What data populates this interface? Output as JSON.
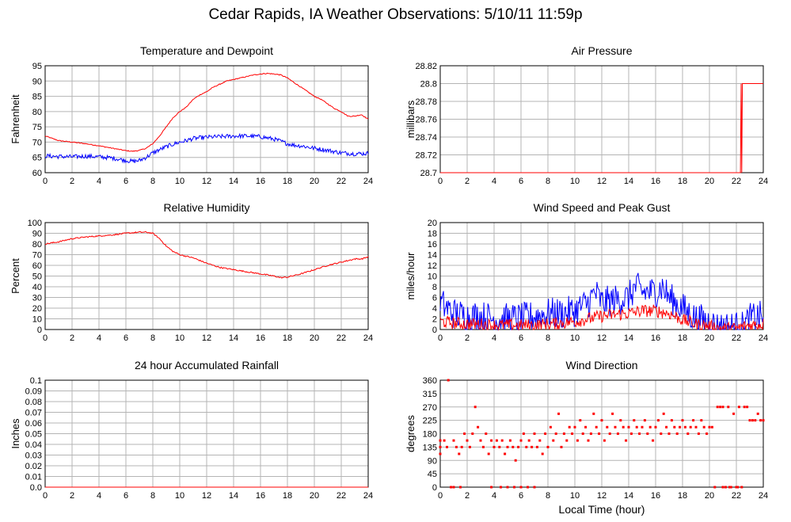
{
  "title": "Cedar Rapids, IA Weather Observations: 5/10/11 11:59p",
  "xlabel": "Local Time (hour)",
  "colors": {
    "red": "#ff0000",
    "blue": "#0000ff",
    "grid": "#b4b4b4"
  },
  "chart_data": [
    {
      "id": "temp",
      "type": "line",
      "title": "Temperature and Dewpoint",
      "ylabel": "Fahrenheit",
      "xlim": [
        0,
        24
      ],
      "ylim": [
        60,
        95
      ],
      "xticks": [
        0,
        2,
        4,
        6,
        8,
        10,
        12,
        14,
        16,
        18,
        20,
        22,
        24
      ],
      "yticks": [
        60,
        65,
        70,
        75,
        80,
        85,
        90,
        95
      ],
      "series": [
        {
          "color": "red",
          "noise": 0.15,
          "x": [
            0,
            1,
            2,
            3,
            4,
            5,
            6,
            6.5,
            7,
            7.5,
            8,
            8.5,
            9,
            9.5,
            10,
            10.5,
            11,
            11.5,
            12,
            12.5,
            13,
            13.5,
            14,
            14.5,
            15,
            15.5,
            16,
            16.5,
            17,
            17.5,
            18,
            18.5,
            19,
            19.5,
            20,
            20.5,
            21,
            21.5,
            22,
            22.5,
            23,
            23.5,
            24
          ],
          "y": [
            72,
            70.5,
            70,
            69.5,
            68.8,
            68,
            67.2,
            67,
            67.3,
            68,
            69.5,
            72,
            75,
            78,
            80,
            81.5,
            84,
            85.5,
            86.5,
            88,
            89,
            90,
            90.5,
            91,
            91.5,
            92,
            92.3,
            92.5,
            92.3,
            92,
            91,
            89.5,
            88,
            86.5,
            85,
            84,
            82.5,
            81,
            80,
            78.5,
            78.5,
            79,
            77.5
          ]
        },
        {
          "color": "blue",
          "noise": 0.7,
          "x": [
            0,
            1,
            2,
            3,
            4,
            5,
            6,
            6.5,
            7,
            7.5,
            8,
            8.5,
            9,
            9.5,
            10,
            10.5,
            11,
            12,
            13,
            14,
            15,
            16,
            17,
            17.5,
            18,
            18.5,
            19,
            20,
            21,
            22,
            23,
            24
          ],
          "y": [
            65.5,
            65.3,
            65.2,
            65.4,
            65.2,
            64.8,
            64,
            63.7,
            64,
            65,
            66.5,
            67.5,
            68.5,
            69.3,
            70,
            70.5,
            71.2,
            71.6,
            71.8,
            72,
            72,
            71.8,
            71,
            70.3,
            69.5,
            69,
            68.8,
            68,
            67.3,
            66.5,
            66.2,
            66.3
          ]
        }
      ]
    },
    {
      "id": "pressure",
      "type": "line",
      "title": "Air Pressure",
      "ylabel": "millibars",
      "xlim": [
        0,
        24
      ],
      "ylim": [
        28.7,
        28.82
      ],
      "xticks": [
        0,
        2,
        4,
        6,
        8,
        10,
        12,
        14,
        16,
        18,
        20,
        22,
        24
      ],
      "yticks": [
        28.7,
        28.72,
        28.74,
        28.76,
        28.78,
        28.8,
        28.82
      ],
      "yticklabels": [
        "28.7",
        "28.72",
        "28.74",
        "28.76",
        "28.78",
        "28.8",
        "28.82"
      ],
      "series": [
        {
          "color": "red",
          "noise": 0,
          "x": [
            0,
            22.3,
            22.35,
            22.4,
            22.45,
            22.5,
            24
          ],
          "y": [
            28.7,
            28.7,
            28.8,
            28.7,
            28.8,
            28.8,
            28.8
          ]
        }
      ]
    },
    {
      "id": "humidity",
      "type": "line",
      "title": "Relative Humidity",
      "ylabel": "Percent",
      "xlim": [
        0,
        24
      ],
      "ylim": [
        0,
        100
      ],
      "xticks": [
        0,
        2,
        4,
        6,
        8,
        10,
        12,
        14,
        16,
        18,
        20,
        22,
        24
      ],
      "yticks": [
        0,
        10,
        20,
        30,
        40,
        50,
        60,
        70,
        80,
        90,
        100
      ],
      "series": [
        {
          "color": "red",
          "noise": 0.6,
          "x": [
            0,
            1,
            2,
            3,
            4,
            5,
            6,
            7,
            7.5,
            8,
            8.5,
            9,
            9.5,
            10,
            11,
            12,
            13,
            14,
            15,
            16,
            17,
            17.5,
            18,
            19,
            20,
            21,
            22,
            23,
            23.5,
            24
          ],
          "y": [
            80,
            82,
            85,
            86.5,
            87.5,
            88.5,
            90,
            91,
            91,
            90,
            85,
            78,
            73,
            70,
            67,
            62,
            58,
            56,
            54,
            52,
            50,
            48.5,
            49,
            52,
            56,
            60,
            63,
            66,
            66,
            68
          ]
        }
      ]
    },
    {
      "id": "wind",
      "type": "line",
      "title": "Wind Speed and Peak Gust",
      "ylabel": "miles/hour",
      "xlim": [
        0,
        24
      ],
      "ylim": [
        0,
        20
      ],
      "xticks": [
        0,
        2,
        4,
        6,
        8,
        10,
        12,
        14,
        16,
        18,
        20,
        22,
        24
      ],
      "yticks": [
        0,
        2,
        4,
        6,
        8,
        10,
        12,
        14,
        16,
        18,
        20
      ],
      "series": [
        {
          "color": "blue",
          "noise": 3,
          "x": [
            0,
            0.5,
            1,
            2,
            3,
            4,
            5,
            6,
            7,
            8,
            9,
            10,
            11,
            11.5,
            12,
            13,
            14,
            14.5,
            15,
            16,
            16.5,
            17,
            18,
            19,
            20,
            20.5,
            21,
            22,
            22.5,
            23,
            24
          ],
          "y": [
            5,
            4,
            3,
            2.5,
            2.5,
            2,
            2,
            2,
            2.5,
            3,
            3,
            3.5,
            5,
            7,
            5,
            5.5,
            6,
            8,
            7,
            7,
            8,
            6,
            4,
            2,
            1.5,
            0.5,
            0.5,
            0.5,
            0.5,
            2,
            2.5
          ]
        },
        {
          "color": "red",
          "noise": 1.2,
          "x": [
            0,
            1,
            2,
            3,
            4,
            5,
            6,
            7,
            8,
            9,
            10,
            11,
            12,
            13,
            14,
            15,
            16,
            17,
            18,
            19,
            20,
            21,
            22,
            23,
            24
          ],
          "y": [
            1.5,
            1.2,
            1,
            1,
            0.8,
            0.8,
            0.8,
            0.8,
            1,
            1.2,
            1.5,
            2,
            2.5,
            2.8,
            3,
            3.5,
            3.5,
            3,
            1.8,
            1,
            0.6,
            0.2,
            0.2,
            0.8,
            1
          ]
        }
      ]
    },
    {
      "id": "rain",
      "type": "line",
      "title": "24 hour Accumulated Rainfall",
      "ylabel": "Inches",
      "xlim": [
        0,
        24
      ],
      "ylim": [
        0,
        0.1
      ],
      "xticks": [
        0,
        2,
        4,
        6,
        8,
        10,
        12,
        14,
        16,
        18,
        20,
        22,
        24
      ],
      "yticks": [
        0,
        0.01,
        0.02,
        0.03,
        0.04,
        0.05,
        0.06,
        0.07,
        0.08,
        0.09,
        0.1
      ],
      "yticklabels": [
        "0.0",
        "0.01",
        "0.02",
        "0.03",
        "0.04",
        "0.05",
        "0.06",
        "0.07",
        "0.08",
        "0.09",
        "0.1"
      ],
      "series": [
        {
          "color": "red",
          "noise": 0,
          "x": [
            0,
            24
          ],
          "y": [
            0,
            0
          ]
        }
      ]
    },
    {
      "id": "direction",
      "type": "scatter",
      "title": "Wind Direction",
      "ylabel": "degrees",
      "xlim": [
        0,
        24
      ],
      "ylim": [
        0,
        360
      ],
      "xticks": [
        0,
        2,
        4,
        6,
        8,
        10,
        12,
        14,
        16,
        18,
        20,
        22,
        24
      ],
      "yticks": [
        0,
        45,
        90,
        135,
        180,
        225,
        270,
        315,
        360
      ],
      "series": [
        {
          "color": "red",
          "points": [
            [
              0,
              157
            ],
            [
              0,
              135
            ],
            [
              0,
              112
            ],
            [
              0.3,
              157
            ],
            [
              0.5,
              135
            ],
            [
              0.6,
              360
            ],
            [
              0.8,
              0
            ],
            [
              1,
              157
            ],
            [
              1.2,
              135
            ],
            [
              1.4,
              112
            ],
            [
              1.6,
              135
            ],
            [
              1.8,
              180
            ],
            [
              2,
              157
            ],
            [
              2.2,
              135
            ],
            [
              2.4,
              180
            ],
            [
              2.6,
              270
            ],
            [
              2.8,
              202
            ],
            [
              3,
              157
            ],
            [
              3.2,
              135
            ],
            [
              3.4,
              180
            ],
            [
              3.6,
              112
            ],
            [
              3.8,
              157
            ],
            [
              4,
              135
            ],
            [
              4.2,
              157
            ],
            [
              4.4,
              135
            ],
            [
              4.6,
              157
            ],
            [
              4.8,
              112
            ],
            [
              5,
              135
            ],
            [
              5.2,
              157
            ],
            [
              5.4,
              135
            ],
            [
              5.6,
              90
            ],
            [
              5.8,
              135
            ],
            [
              6,
              157
            ],
            [
              6.2,
              180
            ],
            [
              6.4,
              135
            ],
            [
              6.6,
              157
            ],
            [
              6.8,
              135
            ],
            [
              7,
              180
            ],
            [
              7.2,
              135
            ],
            [
              7.4,
              157
            ],
            [
              7.6,
              112
            ],
            [
              7.8,
              180
            ],
            [
              8,
              135
            ],
            [
              8.2,
              202
            ],
            [
              8.4,
              157
            ],
            [
              8.6,
              180
            ],
            [
              8.8,
              247
            ],
            [
              9,
              135
            ],
            [
              9.2,
              180
            ],
            [
              9.4,
              157
            ],
            [
              9.6,
              202
            ],
            [
              9.8,
              180
            ],
            [
              10,
              202
            ],
            [
              10.2,
              157
            ],
            [
              10.4,
              225
            ],
            [
              10.6,
              180
            ],
            [
              10.8,
              202
            ],
            [
              11,
              157
            ],
            [
              11.2,
              180
            ],
            [
              11.4,
              247
            ],
            [
              11.6,
              202
            ],
            [
              11.8,
              180
            ],
            [
              12,
              225
            ],
            [
              12.2,
              157
            ],
            [
              12.4,
              202
            ],
            [
              12.6,
              180
            ],
            [
              12.8,
              247
            ],
            [
              13,
              202
            ],
            [
              13.2,
              180
            ],
            [
              13.4,
              225
            ],
            [
              13.6,
              202
            ],
            [
              13.8,
              157
            ],
            [
              14,
              202
            ],
            [
              14.2,
              180
            ],
            [
              14.4,
              225
            ],
            [
              14.6,
              202
            ],
            [
              14.8,
              180
            ],
            [
              15,
              202
            ],
            [
              15.2,
              225
            ],
            [
              15.4,
              180
            ],
            [
              15.6,
              202
            ],
            [
              15.8,
              157
            ],
            [
              16,
              202
            ],
            [
              16.2,
              225
            ],
            [
              16.4,
              180
            ],
            [
              16.6,
              247
            ],
            [
              16.8,
              202
            ],
            [
              17,
              180
            ],
            [
              17.2,
              225
            ],
            [
              17.4,
              202
            ],
            [
              17.6,
              180
            ],
            [
              17.8,
              202
            ],
            [
              18,
              225
            ],
            [
              18.2,
              202
            ],
            [
              18.4,
              180
            ],
            [
              18.6,
              202
            ],
            [
              18.8,
              225
            ],
            [
              19,
              202
            ],
            [
              19.2,
              180
            ],
            [
              19.4,
              225
            ],
            [
              19.6,
              202
            ],
            [
              19.8,
              180
            ],
            [
              20,
              202
            ],
            [
              20.2,
              202
            ],
            [
              20.4,
              0
            ],
            [
              20.6,
              270
            ],
            [
              20.8,
              270
            ],
            [
              21,
              270
            ],
            [
              21.2,
              0
            ],
            [
              21.4,
              270
            ],
            [
              21.6,
              0
            ],
            [
              21.8,
              247
            ],
            [
              22,
              0
            ],
            [
              22.2,
              270
            ],
            [
              22.4,
              0
            ],
            [
              22.6,
              270
            ],
            [
              22.8,
              270
            ],
            [
              23,
              225
            ],
            [
              23.2,
              225
            ],
            [
              23.4,
              225
            ],
            [
              23.6,
              247
            ],
            [
              23.8,
              225
            ],
            [
              24,
              225
            ],
            [
              1,
              0
            ],
            [
              1.5,
              0
            ],
            [
              3.8,
              0
            ],
            [
              4.5,
              0
            ],
            [
              5,
              0
            ],
            [
              5.5,
              0
            ],
            [
              6,
              0
            ],
            [
              6.5,
              0
            ],
            [
              7,
              0
            ],
            [
              21,
              0
            ],
            [
              21.5,
              0
            ],
            [
              22.1,
              0
            ]
          ]
        }
      ]
    }
  ]
}
